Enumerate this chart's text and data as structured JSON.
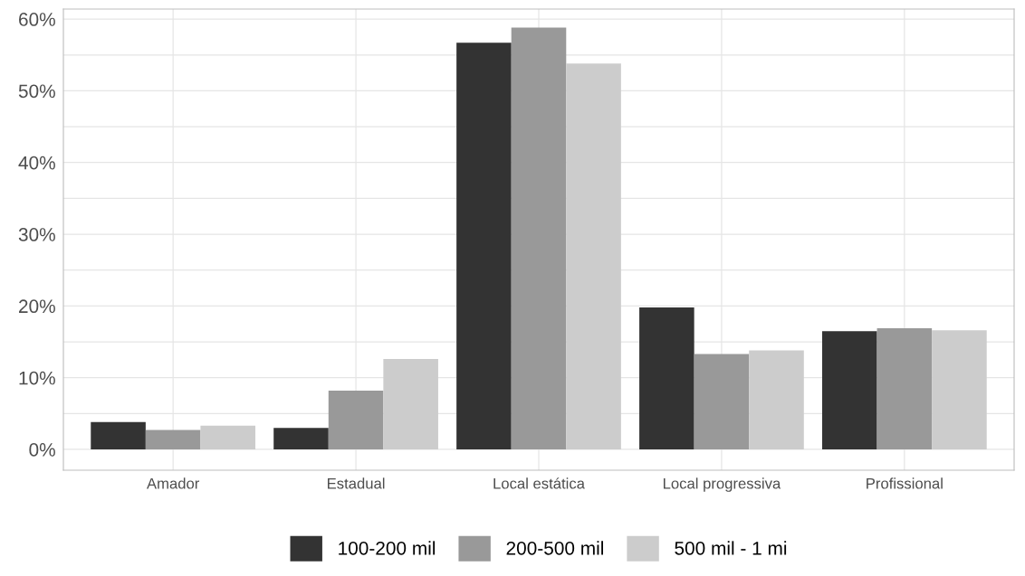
{
  "chart_data": {
    "type": "bar",
    "categories": [
      "Amador",
      "Estadual",
      "Local estática",
      "Local progressiva",
      "Profissional"
    ],
    "series": [
      {
        "name": "100-200 mil",
        "color": "#333333",
        "values": [
          3.8,
          3.0,
          56.7,
          19.8,
          16.5
        ]
      },
      {
        "name": "200-500 mil",
        "color": "#999999",
        "values": [
          2.7,
          8.2,
          58.8,
          13.3,
          16.9
        ]
      },
      {
        "name": "500 mil - 1 mi",
        "color": "#cccccc",
        "values": [
          3.3,
          12.6,
          53.8,
          13.8,
          16.6
        ]
      }
    ],
    "ylim": [
      -2.9,
      61.4
    ],
    "yticks": [
      {
        "value": 0,
        "label": "0%"
      },
      {
        "value": 5,
        "label": null
      },
      {
        "value": 10,
        "label": "10%"
      },
      {
        "value": 15,
        "label": null
      },
      {
        "value": 20,
        "label": "20%"
      },
      {
        "value": 25,
        "label": null
      },
      {
        "value": 30,
        "label": "30%"
      },
      {
        "value": 35,
        "label": null
      },
      {
        "value": 40,
        "label": "40%"
      },
      {
        "value": 45,
        "label": null
      },
      {
        "value": 50,
        "label": "50%"
      },
      {
        "value": 55,
        "label": null
      },
      {
        "value": 60,
        "label": "60%"
      }
    ],
    "grid": true,
    "legend": "bottom"
  }
}
